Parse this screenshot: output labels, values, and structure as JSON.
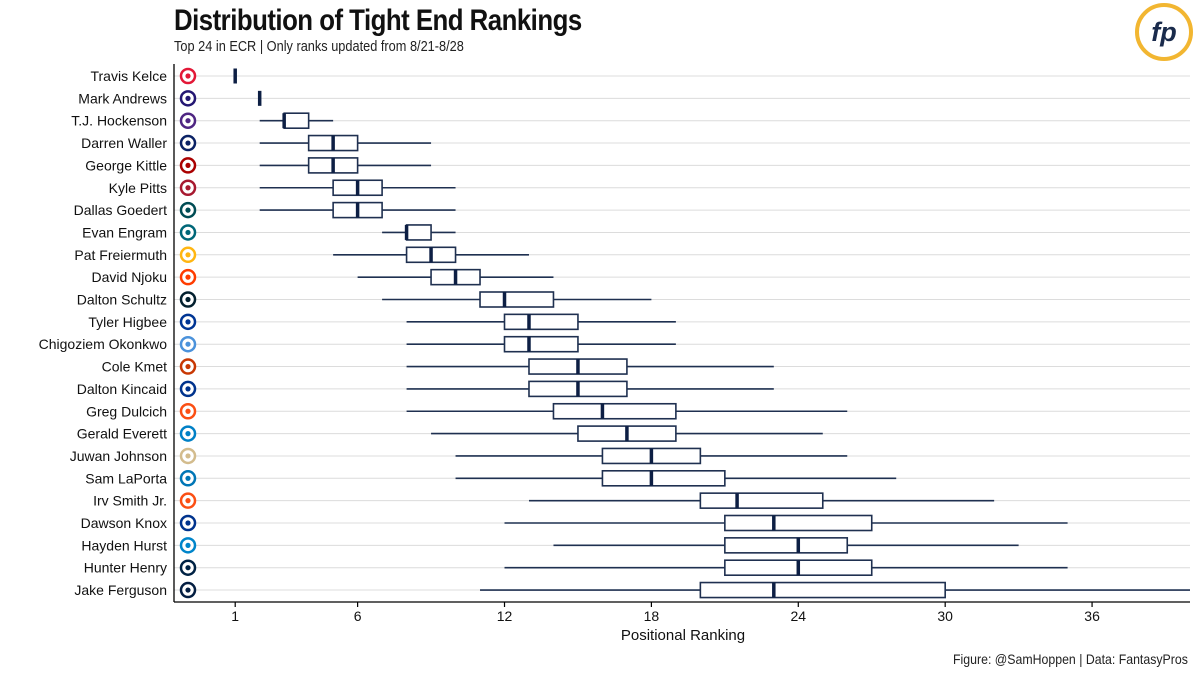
{
  "header": {
    "title": "Distribution of Tight End Rankings",
    "subtitle": "Top 24 in ECR | Only ranks updated from 8/21-8/28"
  },
  "caption": "Figure: @SamHoppen | Data: FantasyPros",
  "logo": {
    "text": "fp",
    "ring_color": "#f2b631",
    "text_color": "#1a2b4c"
  },
  "colors": {
    "box_stroke": "#1f3050",
    "median": "#0d1f44",
    "grid": "#dcdcdc",
    "axis": "#000000"
  },
  "chart_data": {
    "type": "boxplot",
    "orientation": "horizontal",
    "xlabel": "Positional Ranking",
    "ylabel": "",
    "xlim": [
      -1.5,
      40
    ],
    "xticks": [
      1,
      6,
      12,
      18,
      24,
      30,
      36
    ],
    "grid": "horizontal",
    "rows": [
      {
        "player": "Travis Kelce",
        "team_icon": "chiefs-logo-icon",
        "team_color": "#e31837",
        "min": 1,
        "q1": 1,
        "median": 1,
        "q3": 1,
        "max": 1
      },
      {
        "player": "Mark Andrews",
        "team_icon": "ravens-logo-icon",
        "team_color": "#241773",
        "min": 2,
        "q1": 2,
        "median": 2,
        "q3": 2,
        "max": 2
      },
      {
        "player": "T.J. Hockenson",
        "team_icon": "vikings-logo-icon",
        "team_color": "#4f2683",
        "min": 2,
        "q1": 3,
        "median": 3,
        "q3": 4,
        "max": 5
      },
      {
        "player": "Darren Waller",
        "team_icon": "giants-logo-icon",
        "team_color": "#0b2265",
        "min": 2,
        "q1": 4,
        "median": 5,
        "q3": 6,
        "max": 9
      },
      {
        "player": "George Kittle",
        "team_icon": "49ers-logo-icon",
        "team_color": "#aa0000",
        "min": 2,
        "q1": 4,
        "median": 5,
        "q3": 6,
        "max": 9
      },
      {
        "player": "Kyle Pitts",
        "team_icon": "falcons-logo-icon",
        "team_color": "#a71930",
        "min": 2,
        "q1": 5,
        "median": 6,
        "q3": 7,
        "max": 10
      },
      {
        "player": "Dallas Goedert",
        "team_icon": "eagles-logo-icon",
        "team_color": "#004c54",
        "min": 2,
        "q1": 5,
        "median": 6,
        "q3": 7,
        "max": 10
      },
      {
        "player": "Evan Engram",
        "team_icon": "jaguars-logo-icon",
        "team_color": "#006778",
        "min": 7,
        "q1": 8,
        "median": 8,
        "q3": 9,
        "max": 10
      },
      {
        "player": "Pat Freiermuth",
        "team_icon": "steelers-logo-icon",
        "team_color": "#ffb612",
        "min": 5,
        "q1": 8,
        "median": 9,
        "q3": 10,
        "max": 13
      },
      {
        "player": "David Njoku",
        "team_icon": "browns-logo-icon",
        "team_color": "#ff3c00",
        "min": 6,
        "q1": 9,
        "median": 10,
        "q3": 11,
        "max": 14
      },
      {
        "player": "Dalton Schultz",
        "team_icon": "texans-logo-icon",
        "team_color": "#03202f",
        "min": 7,
        "q1": 11,
        "median": 12,
        "q3": 14,
        "max": 18
      },
      {
        "player": "Tyler Higbee",
        "team_icon": "rams-logo-icon",
        "team_color": "#003594",
        "min": 8,
        "q1": 12,
        "median": 13,
        "q3": 15,
        "max": 19
      },
      {
        "player": "Chigoziem Okonkwo",
        "team_icon": "titans-logo-icon",
        "team_color": "#4b92db",
        "min": 8,
        "q1": 12,
        "median": 13,
        "q3": 15,
        "max": 19
      },
      {
        "player": "Cole Kmet",
        "team_icon": "bears-logo-icon",
        "team_color": "#c83803",
        "min": 8,
        "q1": 13,
        "median": 15,
        "q3": 17,
        "max": 23
      },
      {
        "player": "Dalton Kincaid",
        "team_icon": "bills-logo-icon",
        "team_color": "#00338d",
        "min": 8,
        "q1": 13,
        "median": 15,
        "q3": 17,
        "max": 23
      },
      {
        "player": "Greg Dulcich",
        "team_icon": "broncos-logo-icon",
        "team_color": "#fb4f14",
        "min": 8,
        "q1": 14,
        "median": 16,
        "q3": 19,
        "max": 26
      },
      {
        "player": "Gerald Everett",
        "team_icon": "chargers-logo-icon",
        "team_color": "#0080c6",
        "min": 9,
        "q1": 15,
        "median": 17,
        "q3": 19,
        "max": 25
      },
      {
        "player": "Juwan Johnson",
        "team_icon": "saints-logo-icon",
        "team_color": "#d3bc8d",
        "min": 10,
        "q1": 16,
        "median": 18,
        "q3": 20,
        "max": 26
      },
      {
        "player": "Sam LaPorta",
        "team_icon": "lions-logo-icon",
        "team_color": "#0076b6",
        "min": 10,
        "q1": 16,
        "median": 18,
        "q3": 21,
        "max": 28
      },
      {
        "player": "Irv Smith Jr.",
        "team_icon": "bengals-logo-icon",
        "team_color": "#fb4f14",
        "min": 13,
        "q1": 20,
        "median": 21.5,
        "q3": 25,
        "max": 32
      },
      {
        "player": "Dawson Knox",
        "team_icon": "bills-logo-icon",
        "team_color": "#00338d",
        "min": 12,
        "q1": 21,
        "median": 23,
        "q3": 27,
        "max": 35
      },
      {
        "player": "Hayden Hurst",
        "team_icon": "panthers-logo-icon",
        "team_color": "#0085ca",
        "min": 14,
        "q1": 21,
        "median": 24,
        "q3": 26,
        "max": 33
      },
      {
        "player": "Hunter Henry",
        "team_icon": "patriots-logo-icon",
        "team_color": "#002244",
        "min": 12,
        "q1": 21,
        "median": 24,
        "q3": 27,
        "max": 35
      },
      {
        "player": "Jake Ferguson",
        "team_icon": "cowboys-logo-icon",
        "team_color": "#041e42",
        "min": 11,
        "q1": 20,
        "median": 23,
        "q3": 30,
        "max": 40
      }
    ]
  }
}
